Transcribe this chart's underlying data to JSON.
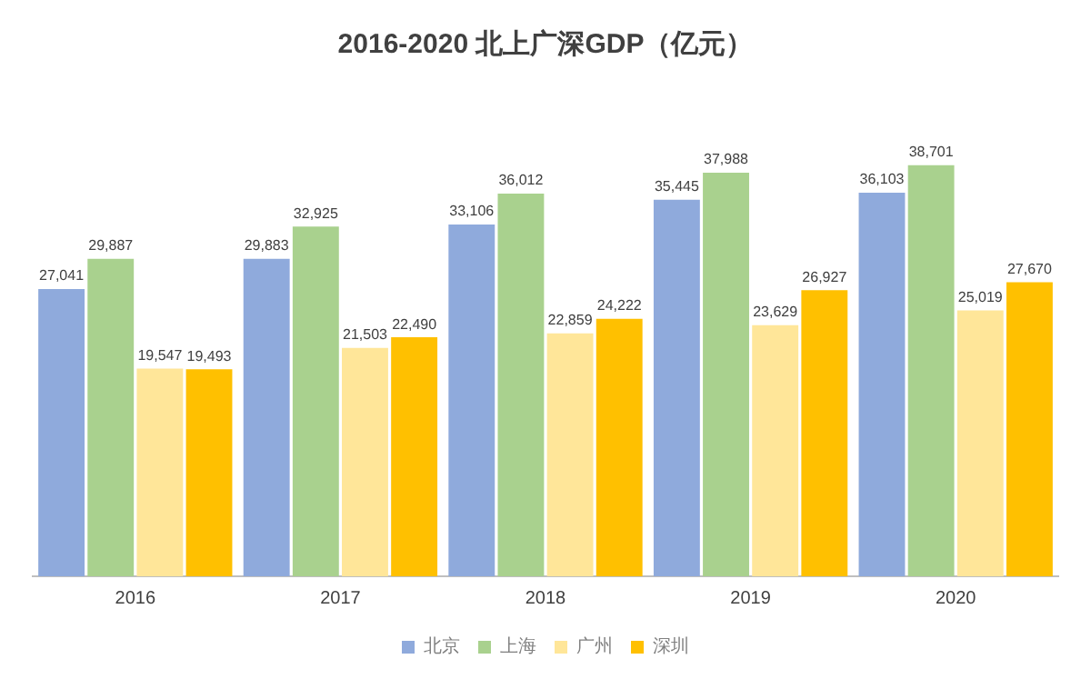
{
  "chart_data": {
    "type": "bar",
    "title": "2016-2020 北上广深GDP（亿元）",
    "categories": [
      "2016",
      "2017",
      "2018",
      "2019",
      "2020"
    ],
    "series": [
      {
        "name": "北京",
        "color": "#8faadc",
        "values": [
          27041,
          29883,
          33106,
          35445,
          36103
        ],
        "value_labels": [
          "27,041",
          "29,883",
          "33,106",
          "35,445",
          "36,103"
        ]
      },
      {
        "name": "上海",
        "color": "#a9d18e",
        "values": [
          29887,
          32925,
          36012,
          37988,
          38701
        ],
        "value_labels": [
          "29,887",
          "32,925",
          "36,012",
          "37,988",
          "38,701"
        ]
      },
      {
        "name": "广州",
        "color": "#ffe699",
        "values": [
          19547,
          21503,
          22859,
          23629,
          25019
        ],
        "value_labels": [
          "19,547",
          "21,503",
          "22,859",
          "23,629",
          "25,019"
        ]
      },
      {
        "name": "深圳",
        "color": "#ffc000",
        "values": [
          19493,
          22490,
          24222,
          26927,
          27670
        ],
        "value_labels": [
          "19,493",
          "22,490",
          "24,222",
          "26,927",
          "27,670"
        ]
      }
    ],
    "legend": "bottom",
    "grid": false
  }
}
